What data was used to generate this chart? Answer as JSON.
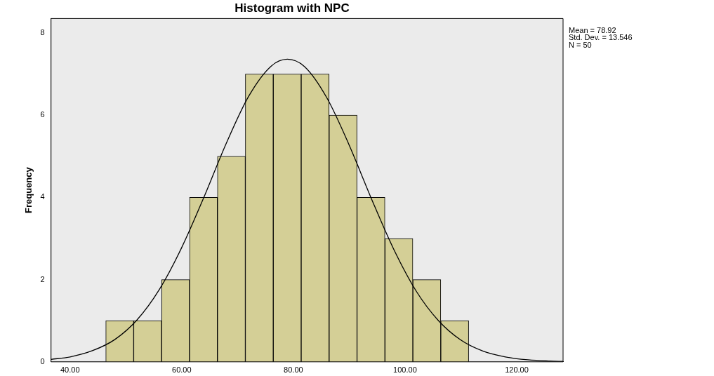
{
  "chart_data": {
    "type": "histogram",
    "title": "Histogram with NPC",
    "ylabel": "Frequency",
    "bins": [
      46.4,
      51.4,
      56.4,
      61.4,
      66.4,
      71.4,
      76.4,
      81.4,
      86.4,
      91.4,
      96.4,
      101.4,
      106.4,
      111.4
    ],
    "values": [
      1,
      1,
      2,
      4,
      5,
      7,
      7,
      7,
      6,
      4,
      3,
      2,
      1
    ],
    "color": "#d4cf96",
    "series": [
      {
        "type": "line",
        "color": "#000000",
        "x": [
          36.6,
          40,
          44,
          48,
          52,
          56,
          60,
          64,
          68,
          72,
          76,
          78.92,
          82,
          86,
          90,
          94,
          98,
          102,
          106,
          110,
          114,
          118,
          122,
          126,
          128.3
        ],
        "values": [
          0.06,
          0.12,
          0.27,
          0.54,
          1.02,
          1.76,
          2.78,
          4.01,
          5.32,
          6.46,
          7.19,
          7.36,
          7.18,
          6.42,
          5.27,
          3.96,
          2.73,
          1.72,
          1.0,
          0.53,
          0.26,
          0.12,
          0.05,
          0.02,
          0.01
        ]
      }
    ],
    "xlim": [
      36.6,
      128.3
    ],
    "xticks": [
      {
        "value": 40,
        "label": "40.00"
      },
      {
        "value": 60,
        "label": "60.00"
      },
      {
        "value": 80,
        "label": "80.00"
      },
      {
        "value": 100,
        "label": "100.00"
      },
      {
        "value": 120,
        "label": "120.00"
      }
    ],
    "ylim": [
      0,
      8.35
    ],
    "yticks": [
      0,
      2,
      4,
      6,
      8
    ],
    "annotations": [
      "Mean = 78.92",
      "Std. Dev. = 13.546",
      "N = 50"
    ],
    "grid": false,
    "legend": false,
    "marker": "none",
    "line_style": "solid"
  }
}
